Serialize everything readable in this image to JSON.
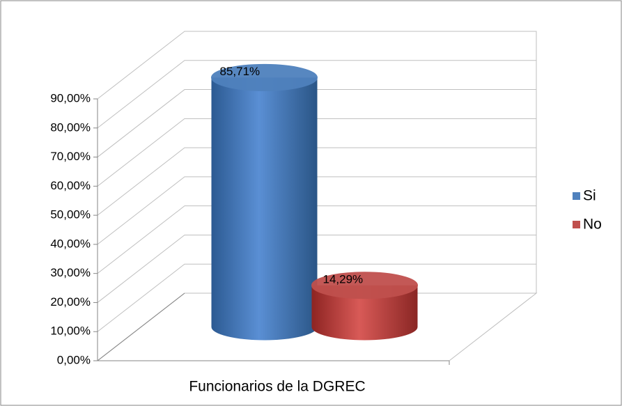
{
  "chart_data": {
    "type": "bar3d",
    "categories": [
      "Funcionarios de la DGREC"
    ],
    "series": [
      {
        "name": "Si",
        "color": "#4f81bd",
        "values": [
          85.71
        ],
        "value_labels": [
          "85,71%"
        ]
      },
      {
        "name": "No",
        "color": "#c0504d",
        "values": [
          14.29
        ],
        "value_labels": [
          "14,29%"
        ]
      }
    ],
    "ylim": [
      0,
      90
    ],
    "yticks": [
      {
        "value": 0,
        "label": "0,00%"
      },
      {
        "value": 10,
        "label": "10,00%"
      },
      {
        "value": 20,
        "label": "20,00%"
      },
      {
        "value": 30,
        "label": "30,00%"
      },
      {
        "value": 40,
        "label": "40,00%"
      },
      {
        "value": 50,
        "label": "50,00%"
      },
      {
        "value": 60,
        "label": "60,00%"
      },
      {
        "value": 70,
        "label": "70,00%"
      },
      {
        "value": 80,
        "label": "80,00%"
      },
      {
        "value": 90,
        "label": "90,00%"
      }
    ],
    "grid": true,
    "legend": "right"
  }
}
